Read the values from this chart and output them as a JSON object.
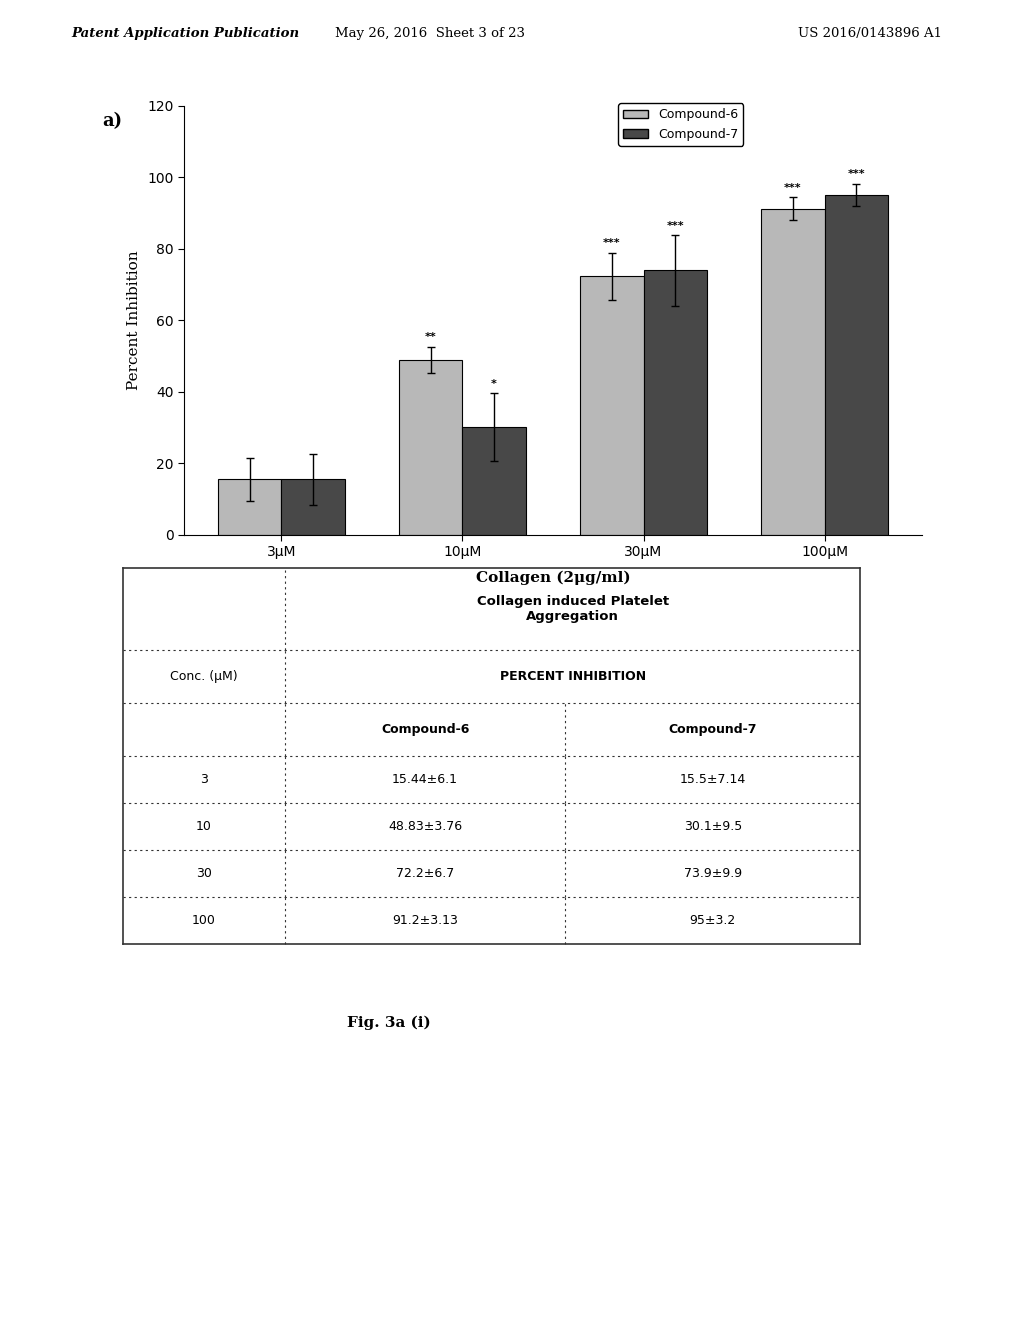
{
  "header_text_left": "Patent Application Publication",
  "header_text_mid": "May 26, 2016  Sheet 3 of 23",
  "header_text_right": "US 2016/0143896 A1",
  "panel_label": "a)",
  "bar_categories": [
    "3μM",
    "10μM",
    "30μM",
    "100μM"
  ],
  "compound6_values": [
    15.44,
    48.83,
    72.2,
    91.2
  ],
  "compound7_values": [
    15.5,
    30.1,
    73.9,
    95.0
  ],
  "compound6_errors": [
    6.1,
    3.76,
    6.7,
    3.13
  ],
  "compound7_errors": [
    7.14,
    9.5,
    9.9,
    3.2
  ],
  "compound6_color": "#b8b8b8",
  "compound7_color": "#484848",
  "ylabel": "Percent Inhibition",
  "xlabel": "Collagen (2μg/ml)",
  "ylim": [
    0,
    120
  ],
  "yticks": [
    0,
    20,
    40,
    60,
    80,
    100,
    120
  ],
  "legend_labels": [
    "Compound-6",
    "Compound-7"
  ],
  "significance_c6": [
    "",
    "**",
    "***",
    "***"
  ],
  "significance_c7": [
    "",
    "*",
    "***",
    "***"
  ],
  "table_title_line1": "Collagen induced Platelet",
  "table_title_line2": "Aggregation",
  "table_col1_header": "Conc. (μM)",
  "table_col2_header": "PERCENT INHIBITION",
  "table_col2a": "Compound-6",
  "table_col2b": "Compound-7",
  "table_conc": [
    "3",
    "10",
    "30",
    "100"
  ],
  "table_c6": [
    "15.44±6.1",
    "48.83±3.76",
    "72.2±6.7",
    "91.2±3.13"
  ],
  "table_c7": [
    "15.5±7.14",
    "30.1±9.5",
    "73.9±9.9",
    "95±3.2"
  ],
  "fig_label": "Fig. 3a (i)",
  "bg_color": "#ffffff"
}
